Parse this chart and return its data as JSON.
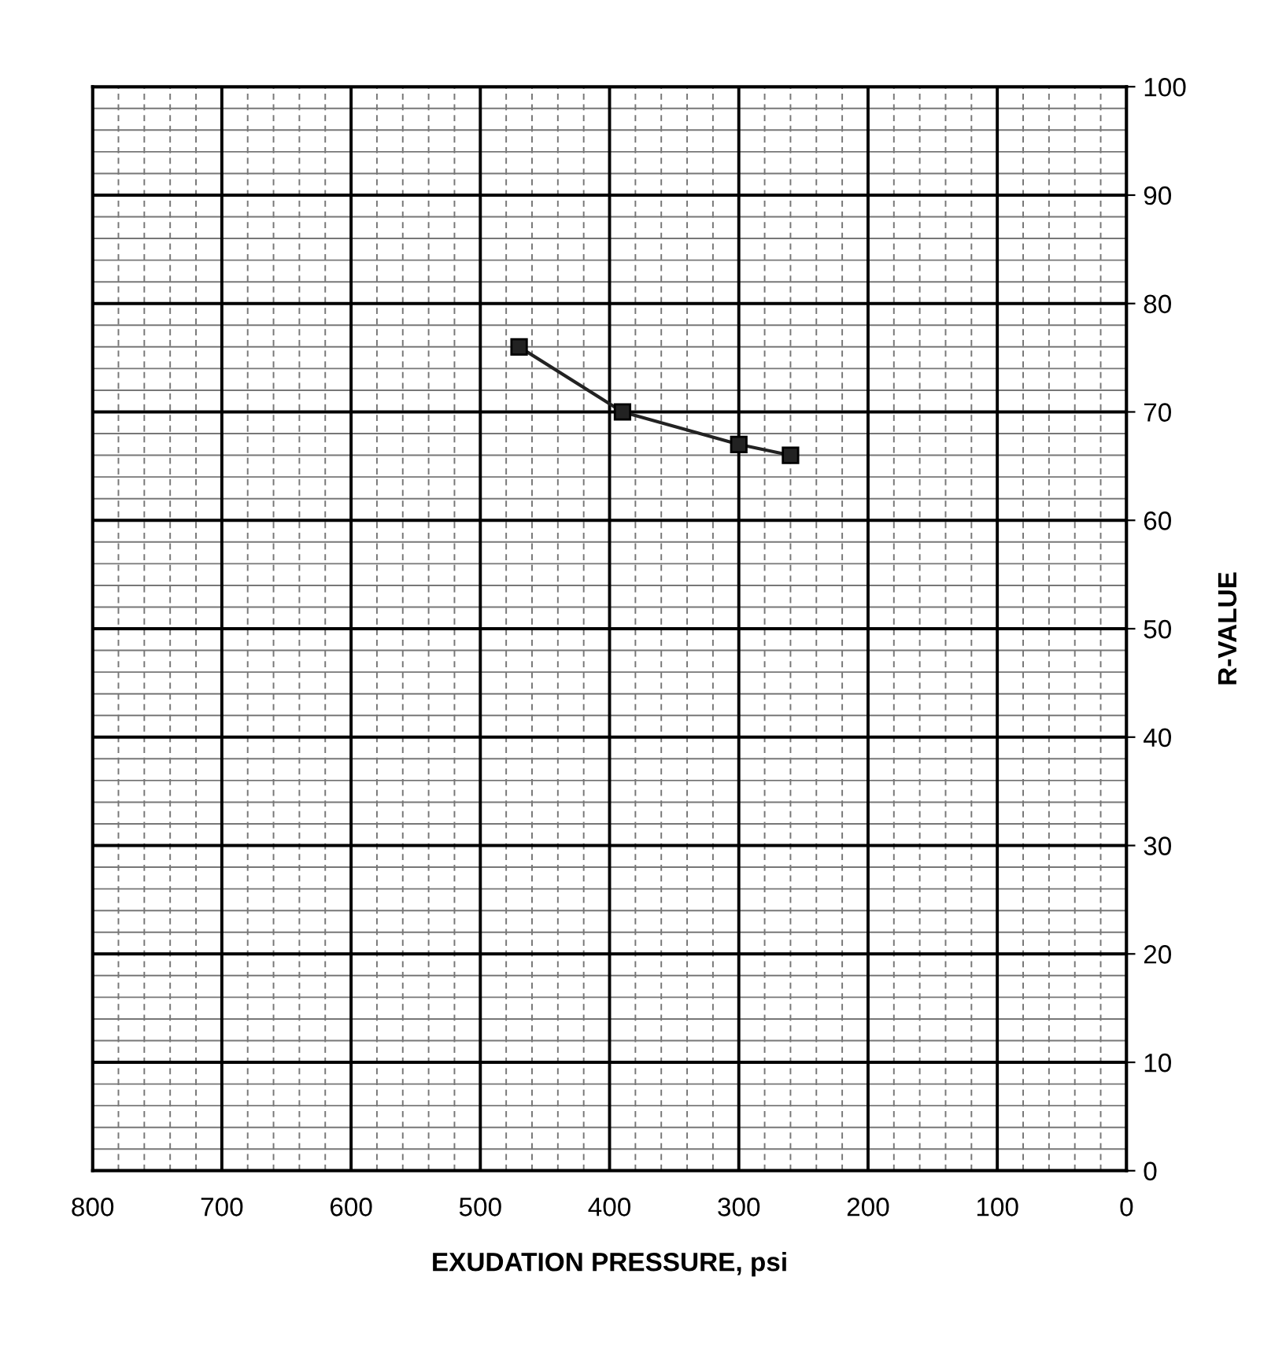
{
  "chart_data": {
    "type": "line",
    "xlabel": "EXUDATION PRESSURE, psi",
    "ylabel": "R-VALUE",
    "x": [
      470,
      390,
      300,
      260
    ],
    "series": [
      {
        "color": "#222222",
        "values": [
          76,
          70,
          67,
          66
        ]
      }
    ],
    "xlim": [
      800,
      0
    ],
    "xticks": [
      800,
      700,
      600,
      500,
      400,
      300,
      200,
      100,
      0
    ],
    "ylim": [
      0,
      100
    ],
    "yticks": [
      0,
      10,
      20,
      30,
      40,
      50,
      60,
      70,
      80,
      90,
      100
    ],
    "grid": true,
    "marker": "square",
    "line_style": "solid",
    "legend": false
  }
}
